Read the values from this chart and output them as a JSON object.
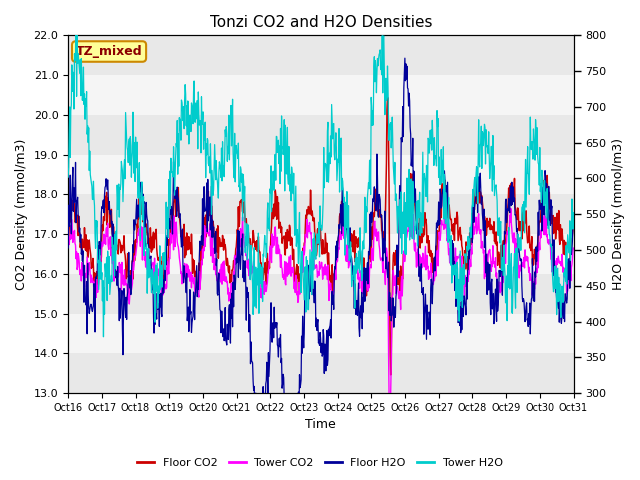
{
  "title": "Tonzi CO2 and H2O Densities",
  "xlabel": "Time",
  "ylabel_left": "CO2 Density (mmol/m3)",
  "ylabel_right": "H2O Density (mmol/m3)",
  "ylim_left": [
    13.0,
    22.0
  ],
  "ylim_right": [
    300,
    800
  ],
  "yticks_left": [
    13.0,
    14.0,
    15.0,
    16.0,
    17.0,
    18.0,
    19.0,
    20.0,
    21.0,
    22.0
  ],
  "yticks_right": [
    300,
    350,
    400,
    450,
    500,
    550,
    600,
    650,
    700,
    750,
    800
  ],
  "xtick_labels": [
    "Oct 16",
    "Oct 17",
    "Oct 18",
    "Oct 19",
    "Oct 20",
    "Oct 21",
    "Oct 22",
    "Oct 23",
    "Oct 24",
    "Oct 25",
    "Oct 26",
    "Oct 27",
    "Oct 28",
    "Oct 29",
    "Oct 30",
    "Oct 31"
  ],
  "colors": {
    "floor_co2": "#cc0000",
    "tower_co2": "#ff00ff",
    "floor_h2o": "#000099",
    "tower_h2o": "#00cccc"
  },
  "legend_labels": [
    "Floor CO2",
    "Tower CO2",
    "Floor H2O",
    "Tower H2O"
  ],
  "annotation_text": "TZ_mixed",
  "annotation_bg": "#ffff99",
  "annotation_border": "#cc8800",
  "band_colors": [
    "#e8e8e8",
    "#f5f5f5"
  ],
  "n_points": 960,
  "figsize": [
    6.4,
    4.8
  ],
  "dpi": 100
}
